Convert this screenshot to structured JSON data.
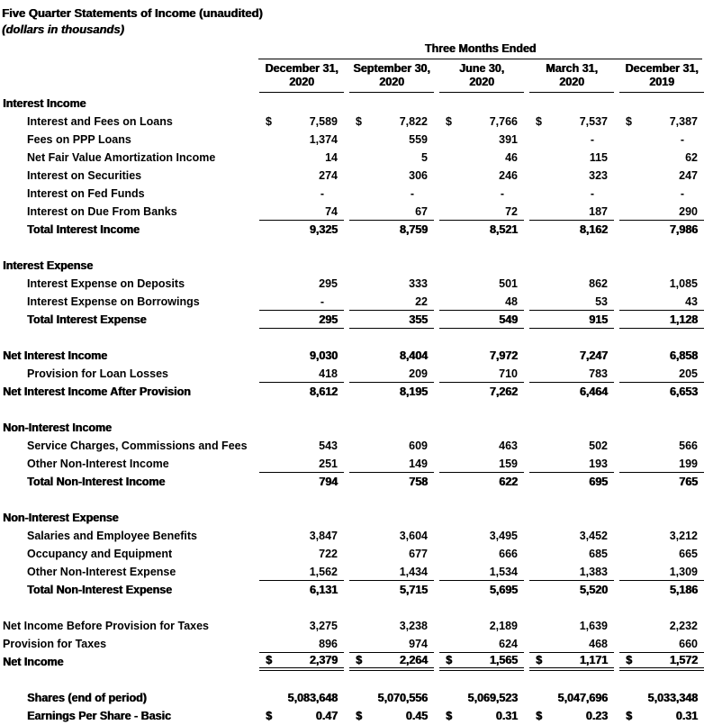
{
  "colors": {
    "text": "#000000",
    "background": "#ffffff"
  },
  "document": {
    "title": "Five Quarter Statements of Income (unaudited)",
    "subtitle": "(dollars in thousands)",
    "currency_symbol": "$",
    "table_header": {
      "span_label": "Three Months Ended",
      "columns": [
        {
          "line1": "December 31,",
          "line2": "2020"
        },
        {
          "line1": "September 30,",
          "line2": "2020"
        },
        {
          "line1": "June 30,",
          "line2": "2020"
        },
        {
          "line1": "March 31,",
          "line2": "2020"
        },
        {
          "line1": "December 31,",
          "line2": "2019"
        }
      ]
    },
    "rows": [
      {
        "type": "section",
        "label": "Interest Income"
      },
      {
        "type": "detail",
        "indent": true,
        "dollar": true,
        "label": "Interest and Fees on Loans",
        "values": [
          "7,589",
          "7,822",
          "7,766",
          "7,537",
          "7,387"
        ]
      },
      {
        "type": "detail",
        "indent": true,
        "label": "Fees on PPP Loans",
        "values": [
          "1,374",
          "559",
          "391",
          "-",
          "-"
        ]
      },
      {
        "type": "detail",
        "indent": true,
        "label": "Net Fair Value Amortization Income",
        "values": [
          "14",
          "5",
          "46",
          "115",
          "62"
        ]
      },
      {
        "type": "detail",
        "indent": true,
        "label": "Interest on Securities",
        "values": [
          "274",
          "306",
          "246",
          "323",
          "247"
        ]
      },
      {
        "type": "detail",
        "indent": true,
        "label": "Interest on Fed Funds",
        "values": [
          "-",
          "-",
          "-",
          "-",
          "-"
        ]
      },
      {
        "type": "detail",
        "indent": true,
        "underline": "single",
        "label": "Interest on Due From Banks",
        "values": [
          "74",
          "67",
          "72",
          "187",
          "290"
        ]
      },
      {
        "type": "total",
        "indent": true,
        "label": "Total Interest Income",
        "values": [
          "9,325",
          "8,759",
          "8,521",
          "8,162",
          "7,986"
        ]
      },
      {
        "type": "blank"
      },
      {
        "type": "section",
        "label": "Interest Expense"
      },
      {
        "type": "detail",
        "indent": true,
        "label": "Interest Expense on Deposits",
        "values": [
          "295",
          "333",
          "501",
          "862",
          "1,085"
        ]
      },
      {
        "type": "detail",
        "indent": true,
        "underline": "single",
        "label": "Interest Expense on Borrowings",
        "values": [
          "-",
          "22",
          "48",
          "53",
          "43"
        ]
      },
      {
        "type": "total",
        "indent": true,
        "underline": "single",
        "label": "Total Interest Expense",
        "values": [
          "295",
          "355",
          "549",
          "915",
          "1,128"
        ]
      },
      {
        "type": "blank"
      },
      {
        "type": "total",
        "label": "Net Interest Income",
        "values": [
          "9,030",
          "8,404",
          "7,972",
          "7,247",
          "6,858"
        ]
      },
      {
        "type": "detail",
        "indent": true,
        "underline": "single",
        "label": "Provision for Loan Losses",
        "values": [
          "418",
          "209",
          "710",
          "783",
          "205"
        ]
      },
      {
        "type": "total",
        "label": "Net Interest Income After Provision",
        "values": [
          "8,612",
          "8,195",
          "7,262",
          "6,464",
          "6,653"
        ]
      },
      {
        "type": "blank"
      },
      {
        "type": "section",
        "label": "Non-Interest Income"
      },
      {
        "type": "detail",
        "indent": true,
        "label": "Service Charges, Commissions and Fees",
        "values": [
          "543",
          "609",
          "463",
          "502",
          "566"
        ]
      },
      {
        "type": "detail",
        "indent": true,
        "underline": "single",
        "label": "Other Non-Interest Income",
        "values": [
          "251",
          "149",
          "159",
          "193",
          "199"
        ]
      },
      {
        "type": "total",
        "indent": true,
        "label": "Total Non-Interest Income",
        "values": [
          "794",
          "758",
          "622",
          "695",
          "765"
        ]
      },
      {
        "type": "blank"
      },
      {
        "type": "section",
        "label": "Non-Interest Expense"
      },
      {
        "type": "detail",
        "indent": true,
        "label": "Salaries and Employee Benefits",
        "values": [
          "3,847",
          "3,604",
          "3,495",
          "3,452",
          "3,212"
        ]
      },
      {
        "type": "detail",
        "indent": true,
        "label": "Occupancy and Equipment",
        "values": [
          "722",
          "677",
          "666",
          "685",
          "665"
        ]
      },
      {
        "type": "detail",
        "indent": true,
        "underline": "single",
        "label": "Other Non-Interest Expense",
        "values": [
          "1,562",
          "1,434",
          "1,534",
          "1,383",
          "1,309"
        ]
      },
      {
        "type": "total",
        "indent": true,
        "label": "Total Non-Interest Expense",
        "values": [
          "6,131",
          "5,715",
          "5,695",
          "5,520",
          "5,186"
        ]
      },
      {
        "type": "blank"
      },
      {
        "type": "detail",
        "label": "Net Income Before Provision for Taxes",
        "values": [
          "3,275",
          "3,238",
          "2,189",
          "1,639",
          "2,232"
        ]
      },
      {
        "type": "detail",
        "underline": "single",
        "label": "Provision for Taxes",
        "values": [
          "896",
          "974",
          "624",
          "468",
          "660"
        ]
      },
      {
        "type": "total",
        "dollar": true,
        "underline": "double",
        "label": "Net Income",
        "values": [
          "2,379",
          "2,264",
          "1,565",
          "1,171",
          "1,572"
        ]
      },
      {
        "type": "blank"
      },
      {
        "type": "total",
        "indent": true,
        "label": "Shares (end of period)",
        "values": [
          "5,083,648",
          "5,070,556",
          "5,069,523",
          "5,047,696",
          "5,033,348"
        ]
      },
      {
        "type": "total",
        "indent": true,
        "dollar": true,
        "label": "Earnings Per Share - Basic",
        "values": [
          "0.47",
          "0.45",
          "0.31",
          "0.23",
          "0.31"
        ]
      }
    ]
  }
}
